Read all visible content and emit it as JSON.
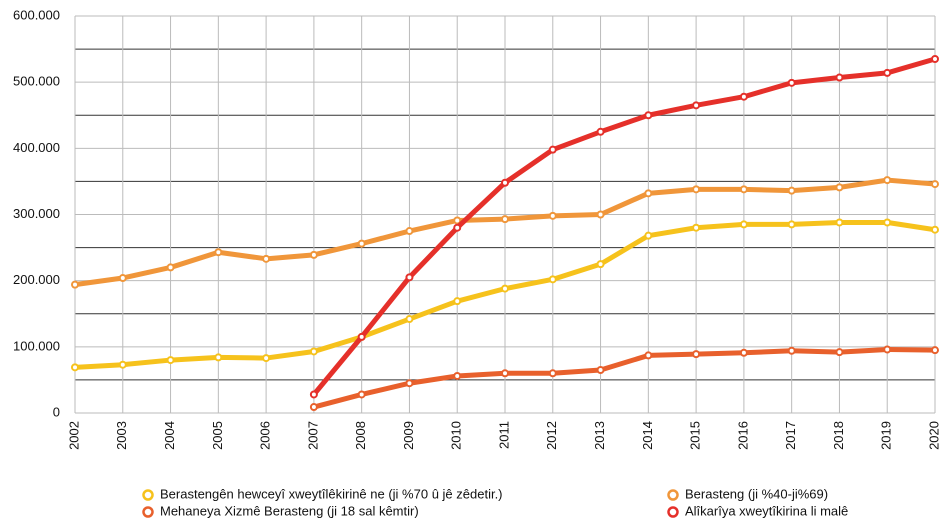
{
  "chart_data": {
    "type": "line",
    "categories": [
      "2002",
      "2003",
      "2004",
      "2005",
      "2006",
      "2007",
      "2008",
      "2009",
      "2010",
      "2011",
      "2012",
      "2013",
      "2014",
      "2015",
      "2016",
      "2017",
      "2018",
      "2019",
      "2020"
    ],
    "series": [
      {
        "name": "Berastengên hewceyî xweytîlêkirinê ne (ji %70 û jê zêdetir.)",
        "color": "#f6c21c",
        "values": [
          69000,
          73000,
          80000,
          84000,
          83000,
          93000,
          115000,
          142000,
          169000,
          188000,
          202000,
          225000,
          268000,
          280000,
          285000,
          285000,
          288000,
          288000,
          277000
        ]
      },
      {
        "name": "Berasteng (ji %40-ji%69)",
        "color": "#f0963a",
        "values": [
          194000,
          204000,
          220000,
          243000,
          233000,
          239000,
          256000,
          275000,
          291000,
          293000,
          298000,
          300000,
          332000,
          338000,
          338000,
          336000,
          341000,
          352000,
          346000
        ]
      },
      {
        "name": "Mehaneya Xizmê Berasteng (ji 18 sal kêmtir)",
        "color": "#e8602c",
        "values": [
          null,
          null,
          null,
          null,
          null,
          9000,
          28000,
          45000,
          56000,
          60000,
          60000,
          65000,
          87000,
          89000,
          91000,
          94000,
          92000,
          96000,
          95000
        ]
      },
      {
        "name": "Alîkarîya xweytîkirina li malê",
        "color": "#e5302a",
        "values": [
          null,
          null,
          null,
          null,
          null,
          28000,
          115000,
          205000,
          280000,
          348000,
          398000,
          425000,
          450000,
          465000,
          478000,
          499000,
          507000,
          514000,
          535000
        ]
      }
    ],
    "ylim": [
      0,
      600000
    ],
    "yticks": [
      0,
      {
        "value": 100000,
        "label": "100.000"
      },
      {
        "value": 200000,
        "label": "200.000"
      },
      {
        "value": 300000,
        "label": "300.000"
      },
      {
        "value": 400000,
        "label": "400.000"
      },
      {
        "value": 500000,
        "label": "500.000"
      },
      {
        "value": 600000,
        "label": "600.000"
      }
    ],
    "yminor": [
      50000,
      150000,
      250000,
      350000,
      450000,
      550000
    ],
    "grid": true,
    "legend": "bottom"
  }
}
